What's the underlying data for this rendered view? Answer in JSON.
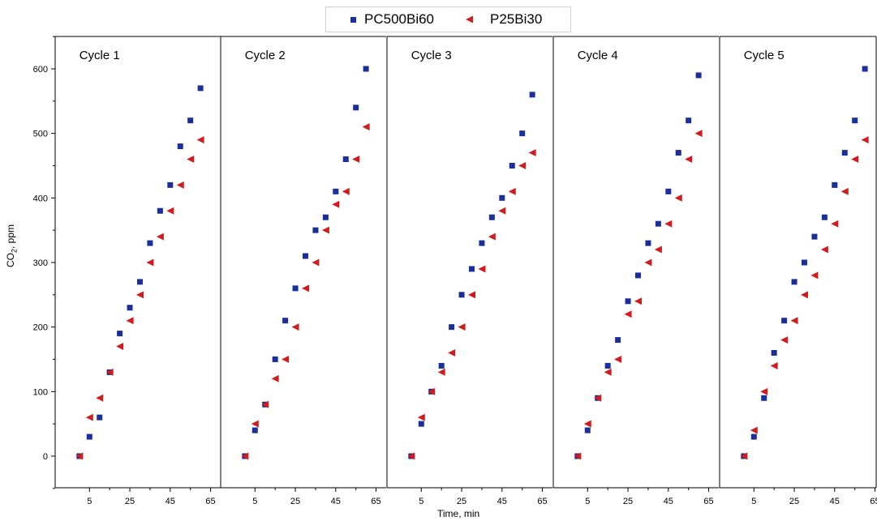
{
  "legend": {
    "series1": "PC500Bi60",
    "series2": "P25Bi30"
  },
  "axes": {
    "ylabel_main": "CO",
    "ylabel_sub": "2",
    "ylabel_tail": ", ppm",
    "xlabel": "Time, min"
  },
  "colors": {
    "series1": "#1a2f9e",
    "series2": "#d01c1c"
  },
  "chart_data": [
    {
      "type": "scatter",
      "title": "Cycle 1",
      "xlim": [
        -12,
        70
      ],
      "ylim": [
        -50,
        650
      ],
      "xticks": [
        5,
        25,
        45,
        65
      ],
      "yticks": [
        0,
        100,
        200,
        300,
        400,
        500,
        600
      ],
      "series": [
        {
          "name": "PC500Bi60",
          "x": [
            0,
            5,
            10,
            15,
            20,
            25,
            30,
            35,
            40,
            45,
            50,
            55,
            60
          ],
          "y": [
            0,
            30,
            60,
            130,
            190,
            230,
            270,
            330,
            380,
            420,
            480,
            520,
            570
          ]
        },
        {
          "name": "P25Bi30",
          "x": [
            0,
            5,
            10,
            15,
            20,
            25,
            30,
            35,
            40,
            45,
            50,
            55,
            60
          ],
          "y": [
            0,
            60,
            90,
            130,
            170,
            210,
            250,
            300,
            340,
            380,
            420,
            460,
            490
          ]
        }
      ]
    },
    {
      "type": "scatter",
      "title": "Cycle 2",
      "xlim": [
        -12,
        70
      ],
      "ylim": [
        -50,
        650
      ],
      "xticks": [
        5,
        25,
        45,
        65
      ],
      "yticks": [
        0,
        100,
        200,
        300,
        400,
        500,
        600
      ],
      "series": [
        {
          "name": "PC500Bi60",
          "x": [
            0,
            5,
            10,
            15,
            20,
            25,
            30,
            35,
            40,
            45,
            50,
            55,
            60
          ],
          "y": [
            0,
            40,
            80,
            150,
            210,
            260,
            310,
            350,
            370,
            410,
            460,
            540,
            600
          ]
        },
        {
          "name": "P25Bi30",
          "x": [
            0,
            5,
            10,
            15,
            20,
            25,
            30,
            35,
            40,
            45,
            50,
            55,
            60
          ],
          "y": [
            0,
            50,
            80,
            120,
            150,
            200,
            260,
            300,
            350,
            390,
            410,
            460,
            510
          ]
        }
      ]
    },
    {
      "type": "scatter",
      "title": "Cycle 3",
      "xlim": [
        -12,
        70
      ],
      "ylim": [
        -50,
        650
      ],
      "xticks": [
        5,
        25,
        45,
        65
      ],
      "yticks": [
        0,
        100,
        200,
        300,
        400,
        500,
        600
      ],
      "series": [
        {
          "name": "PC500Bi60",
          "x": [
            0,
            5,
            10,
            15,
            20,
            25,
            30,
            35,
            40,
            45,
            50,
            55,
            60
          ],
          "y": [
            0,
            50,
            100,
            140,
            200,
            250,
            290,
            330,
            370,
            400,
            450,
            500,
            560
          ]
        },
        {
          "name": "P25Bi30",
          "x": [
            0,
            5,
            10,
            15,
            20,
            25,
            30,
            35,
            40,
            45,
            50,
            55,
            60
          ],
          "y": [
            0,
            60,
            100,
            130,
            160,
            200,
            250,
            290,
            340,
            380,
            410,
            450,
            470
          ]
        }
      ]
    },
    {
      "type": "scatter",
      "title": "Cycle 4",
      "xlim": [
        -12,
        70
      ],
      "ylim": [
        -50,
        650
      ],
      "xticks": [
        5,
        25,
        45,
        65
      ],
      "yticks": [
        0,
        100,
        200,
        300,
        400,
        500,
        600
      ],
      "series": [
        {
          "name": "PC500Bi60",
          "x": [
            0,
            5,
            10,
            15,
            20,
            25,
            30,
            35,
            40,
            45,
            50,
            55,
            60
          ],
          "y": [
            0,
            40,
            90,
            140,
            180,
            240,
            280,
            330,
            360,
            410,
            470,
            520,
            590
          ]
        },
        {
          "name": "P25Bi30",
          "x": [
            0,
            5,
            10,
            15,
            20,
            25,
            30,
            35,
            40,
            45,
            50,
            55,
            60
          ],
          "y": [
            0,
            50,
            90,
            130,
            150,
            220,
            240,
            300,
            320,
            360,
            400,
            460,
            500
          ]
        }
      ]
    },
    {
      "type": "scatter",
      "title": "Cycle 5",
      "xlim": [
        -12,
        70
      ],
      "ylim": [
        -50,
        650
      ],
      "xticks": [
        5,
        25,
        45,
        65
      ],
      "yticks": [
        0,
        100,
        200,
        300,
        400,
        500,
        600
      ],
      "series": [
        {
          "name": "PC500Bi60",
          "x": [
            0,
            5,
            10,
            15,
            20,
            25,
            30,
            35,
            40,
            45,
            50,
            55,
            60
          ],
          "y": [
            0,
            30,
            90,
            160,
            210,
            270,
            300,
            340,
            370,
            420,
            470,
            520,
            600
          ]
        },
        {
          "name": "P25Bi30",
          "x": [
            0,
            5,
            10,
            15,
            20,
            25,
            30,
            35,
            40,
            45,
            50,
            55,
            60
          ],
          "y": [
            0,
            40,
            100,
            140,
            180,
            210,
            250,
            280,
            320,
            360,
            410,
            460,
            490
          ]
        }
      ]
    }
  ]
}
